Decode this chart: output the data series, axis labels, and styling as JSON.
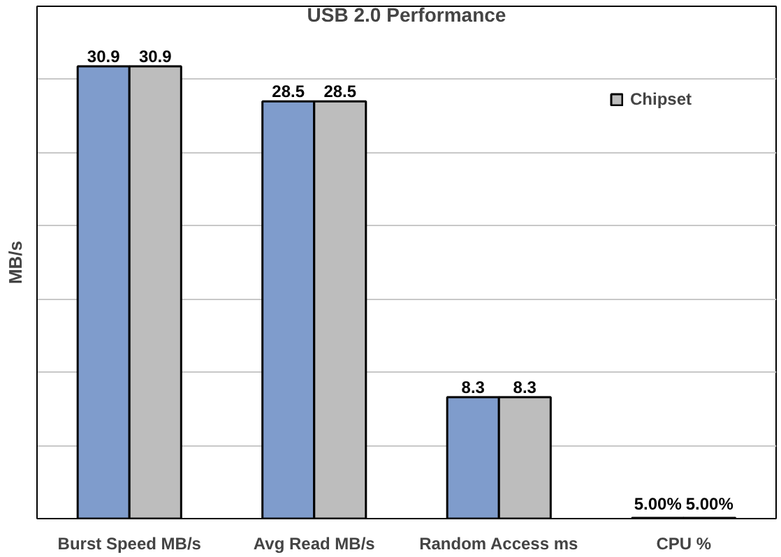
{
  "chart_data": {
    "type": "bar",
    "title": "USB 2.0 Performance",
    "ylabel": "MB/s",
    "categories": [
      "Burst Speed MB/s",
      "Avg Read MB/s",
      "Random Access ms",
      "CPU %"
    ],
    "series": [
      {
        "color": "#7f9ccc",
        "values": [
          30.9,
          28.5,
          8.3,
          0.05
        ],
        "value_labels": [
          "30.9",
          "28.5",
          "8.3",
          "5.00%"
        ]
      },
      {
        "name": "Chipset",
        "color": "#bdbdbd",
        "values": [
          30.9,
          28.5,
          8.3,
          0.05
        ],
        "value_labels": [
          "30.9",
          "28.5",
          "8.3",
          "5.00%"
        ]
      }
    ],
    "ylim": [
      0,
      35
    ],
    "yticks": [
      {
        "value": 0,
        "label": null
      },
      {
        "value": 5,
        "label": null
      },
      {
        "value": 10,
        "label": null
      },
      {
        "value": 15,
        "label": null
      },
      {
        "value": 20,
        "label": null
      },
      {
        "value": 25,
        "label": null
      },
      {
        "value": 30,
        "label": null
      }
    ],
    "grid": "y",
    "legend": "top right",
    "tick_labels": "x"
  }
}
